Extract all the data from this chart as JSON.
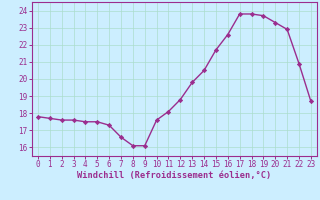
{
  "x": [
    0,
    1,
    2,
    3,
    4,
    5,
    6,
    7,
    8,
    9,
    10,
    11,
    12,
    13,
    14,
    15,
    16,
    17,
    18,
    19,
    20,
    21,
    22,
    23
  ],
  "y": [
    17.8,
    17.7,
    17.6,
    17.6,
    17.5,
    17.5,
    17.3,
    16.6,
    16.1,
    16.1,
    17.6,
    18.1,
    18.8,
    19.8,
    20.5,
    21.7,
    22.6,
    23.8,
    23.8,
    23.7,
    23.3,
    22.9,
    20.9,
    18.7
  ],
  "line_color": "#9b2d8e",
  "marker": "D",
  "markersize": 2.2,
  "linewidth": 1.0,
  "background_color": "#cceeff",
  "grid_color": "#aaddcc",
  "xlabel": "Windchill (Refroidissement éolien,°C)",
  "xlabel_color": "#9b2d8e",
  "tick_color": "#9b2d8e",
  "spine_color": "#9b2d8e",
  "ylim": [
    15.5,
    24.5
  ],
  "xlim": [
    -0.5,
    23.5
  ],
  "yticks": [
    16,
    17,
    18,
    19,
    20,
    21,
    22,
    23,
    24
  ],
  "xticks": [
    0,
    1,
    2,
    3,
    4,
    5,
    6,
    7,
    8,
    9,
    10,
    11,
    12,
    13,
    14,
    15,
    16,
    17,
    18,
    19,
    20,
    21,
    22,
    23
  ],
  "tick_fontsize": 5.5,
  "xlabel_fontsize": 6.2,
  "ylabel_fontsize": 6
}
